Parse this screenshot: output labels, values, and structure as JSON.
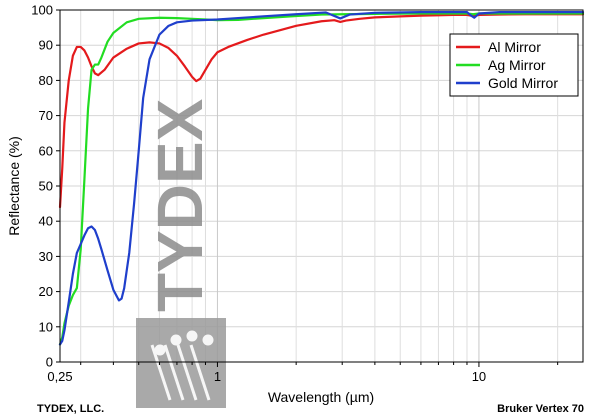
{
  "chart_data": {
    "type": "line",
    "title": "",
    "xlabel": "Wavelength (µm)",
    "ylabel": "Reflectance (%)",
    "x_scale": "log",
    "xlim": [
      0.25,
      25
    ],
    "ylim": [
      0,
      100
    ],
    "x_ticks": [
      0.25,
      1,
      10
    ],
    "x_tick_labels": [
      "0,25",
      "1",
      "10"
    ],
    "y_ticks": [
      0,
      10,
      20,
      30,
      40,
      50,
      60,
      70,
      80,
      90,
      100
    ],
    "grid": true,
    "legend_position": "top-right",
    "series": [
      {
        "name": "Al Mirror",
        "color": "#e41a1c",
        "points": [
          [
            0.25,
            44
          ],
          [
            0.255,
            55
          ],
          [
            0.26,
            68
          ],
          [
            0.27,
            80
          ],
          [
            0.28,
            87
          ],
          [
            0.29,
            89.5
          ],
          [
            0.3,
            89.5
          ],
          [
            0.31,
            88.5
          ],
          [
            0.32,
            86.5
          ],
          [
            0.33,
            84
          ],
          [
            0.34,
            82
          ],
          [
            0.35,
            81.5
          ],
          [
            0.37,
            83
          ],
          [
            0.4,
            86.5
          ],
          [
            0.45,
            89
          ],
          [
            0.5,
            90.5
          ],
          [
            0.55,
            90.8
          ],
          [
            0.6,
            90.5
          ],
          [
            0.65,
            89.2
          ],
          [
            0.7,
            87
          ],
          [
            0.75,
            84
          ],
          [
            0.8,
            81
          ],
          [
            0.83,
            79.8
          ],
          [
            0.86,
            80.5
          ],
          [
            0.9,
            83
          ],
          [
            0.95,
            86
          ],
          [
            1,
            88
          ],
          [
            1.1,
            89.5
          ],
          [
            1.3,
            91.5
          ],
          [
            1.5,
            93
          ],
          [
            2,
            95.5
          ],
          [
            2.5,
            96.8
          ],
          [
            2.8,
            97.1
          ],
          [
            2.95,
            96.6
          ],
          [
            3.1,
            97
          ],
          [
            3.5,
            97.5
          ],
          [
            4,
            97.9
          ],
          [
            5,
            98.2
          ],
          [
            6,
            98.4
          ],
          [
            7,
            98.5
          ],
          [
            8,
            98.6
          ],
          [
            9,
            98.6
          ],
          [
            9.5,
            98.3
          ],
          [
            10,
            98.6
          ],
          [
            12,
            98.7
          ],
          [
            15,
            98.8
          ],
          [
            20,
            98.8
          ],
          [
            25,
            98.8
          ]
        ]
      },
      {
        "name": "Ag Mirror",
        "color": "#22dd22",
        "points": [
          [
            0.25,
            5
          ],
          [
            0.255,
            7
          ],
          [
            0.26,
            11
          ],
          [
            0.27,
            16
          ],
          [
            0.28,
            19
          ],
          [
            0.29,
            21
          ],
          [
            0.3,
            32
          ],
          [
            0.31,
            52
          ],
          [
            0.32,
            72
          ],
          [
            0.33,
            83
          ],
          [
            0.34,
            84.5
          ],
          [
            0.35,
            84.5
          ],
          [
            0.36,
            86.5
          ],
          [
            0.38,
            91
          ],
          [
            0.4,
            93.5
          ],
          [
            0.45,
            96.5
          ],
          [
            0.5,
            97.5
          ],
          [
            0.6,
            97.8
          ],
          [
            0.7,
            97.7
          ],
          [
            0.8,
            97.5
          ],
          [
            0.9,
            97.3
          ],
          [
            1,
            97.1
          ],
          [
            1.2,
            97.2
          ],
          [
            1.5,
            97.7
          ],
          [
            2,
            98.3
          ],
          [
            2.5,
            98.7
          ],
          [
            3,
            98.8
          ],
          [
            4,
            98.9
          ],
          [
            6,
            99
          ],
          [
            9,
            99
          ],
          [
            9.5,
            98.8
          ],
          [
            10,
            99
          ],
          [
            15,
            99
          ],
          [
            25,
            99
          ]
        ]
      },
      {
        "name": "Gold Mirror",
        "color": "#1f3fcc",
        "points": [
          [
            0.25,
            5
          ],
          [
            0.255,
            6
          ],
          [
            0.26,
            9
          ],
          [
            0.27,
            17
          ],
          [
            0.28,
            25
          ],
          [
            0.29,
            31
          ],
          [
            0.3,
            33.5
          ],
          [
            0.31,
            36
          ],
          [
            0.32,
            38
          ],
          [
            0.33,
            38.5
          ],
          [
            0.34,
            37.5
          ],
          [
            0.35,
            35
          ],
          [
            0.36,
            32
          ],
          [
            0.38,
            26
          ],
          [
            0.4,
            20.5
          ],
          [
            0.42,
            17.5
          ],
          [
            0.43,
            18
          ],
          [
            0.44,
            21
          ],
          [
            0.46,
            31
          ],
          [
            0.48,
            45
          ],
          [
            0.5,
            60
          ],
          [
            0.52,
            75
          ],
          [
            0.55,
            86
          ],
          [
            0.6,
            93
          ],
          [
            0.65,
            95.5
          ],
          [
            0.7,
            96.5
          ],
          [
            0.8,
            97
          ],
          [
            1,
            97.3
          ],
          [
            1.5,
            98.2
          ],
          [
            2,
            98.8
          ],
          [
            2.6,
            99.3
          ],
          [
            2.8,
            98.3
          ],
          [
            2.95,
            97.6
          ],
          [
            3.2,
            98.7
          ],
          [
            4,
            99.2
          ],
          [
            6,
            99.4
          ],
          [
            9,
            99.4
          ],
          [
            9.3,
            98.5
          ],
          [
            9.6,
            97.8
          ],
          [
            10,
            99
          ],
          [
            12,
            99.4
          ],
          [
            25,
            99.4
          ]
        ]
      }
    ]
  },
  "watermark": {
    "text": "TYDEX"
  },
  "footer": {
    "left": "TYDEX, LLC.",
    "right": "Bruker Vertex 70"
  }
}
